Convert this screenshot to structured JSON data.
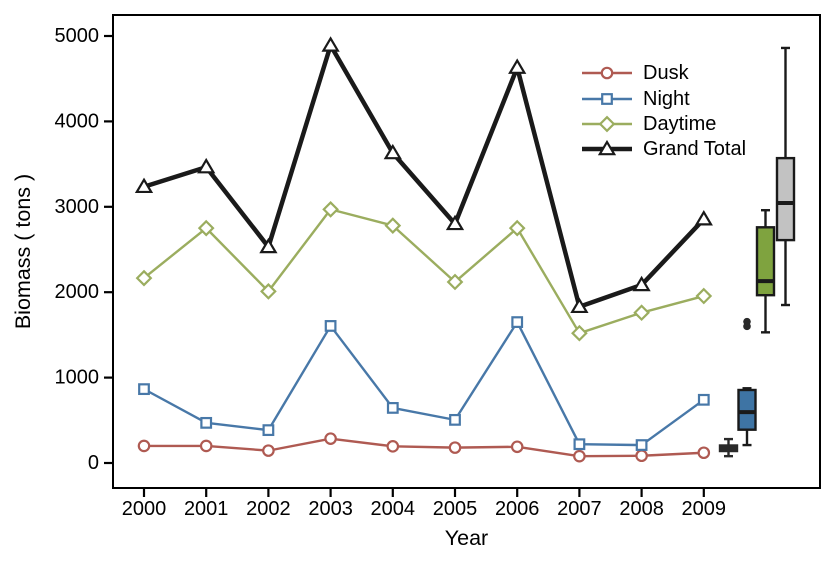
{
  "figure": {
    "background": "#ffffff",
    "frame_color": "#000000"
  },
  "chart_data": {
    "type": "line",
    "title": "",
    "xlabel": "Year",
    "ylabel": "Biomass ( tons )",
    "grid": false,
    "legend_position": "top-right",
    "x": [
      2000,
      2001,
      2002,
      2003,
      2004,
      2005,
      2006,
      2007,
      2008,
      2009
    ],
    "yticks": [
      0,
      1000,
      2000,
      3000,
      4000,
      5000
    ],
    "ylim": [
      -295,
      5245
    ],
    "series": [
      {
        "name": "Dusk",
        "marker": "circle",
        "color": "#AF5A52",
        "line_width": 2.4,
        "values": [
          200,
          200,
          145,
          285,
          195,
          180,
          190,
          80,
          85,
          120
        ]
      },
      {
        "name": "Night",
        "marker": "square",
        "color": "#4878A8",
        "line_width": 2.4,
        "values": [
          865,
          470,
          385,
          1605,
          645,
          505,
          1650,
          220,
          210,
          740
        ]
      },
      {
        "name": "Daytime",
        "marker": "diamond",
        "color": "#9BAD5F",
        "line_width": 2.4,
        "values": [
          2165,
          2750,
          2010,
          2970,
          2780,
          2120,
          2750,
          1520,
          1760,
          1955
        ]
      },
      {
        "name": "Grand Total",
        "marker": "triangle",
        "color": "#1A1A1A",
        "line_width": 4.5,
        "values": [
          3235,
          3465,
          2530,
          4890,
          3630,
          2800,
          4630,
          1830,
          2085,
          2855
        ]
      }
    ],
    "boxplots": [
      {
        "name": "Dusk",
        "fill": "#2A2A2A",
        "border": "#2A2A2A",
        "low": 80,
        "q1": 140,
        "median": 185,
        "q3": 205,
        "high": 280,
        "outliers": []
      },
      {
        "name": "Night",
        "fill": "#3E74A4",
        "border": "#1A1A1A",
        "low": 210,
        "q1": 390,
        "median": 595,
        "q3": 855,
        "high": 875,
        "outliers": [
          1600,
          1655
        ]
      },
      {
        "name": "Daytime",
        "fill": "#7FA33F",
        "border": "#1A1A1A",
        "low": 1530,
        "q1": 1965,
        "median": 2130,
        "q3": 2760,
        "high": 2960,
        "outliers": []
      },
      {
        "name": "Grand Total",
        "fill": "#C2C2C2",
        "border": "#1A1A1A",
        "low": 1850,
        "q1": 2610,
        "median": 3045,
        "q3": 3570,
        "high": 4860,
        "outliers": []
      }
    ],
    "legend": {
      "items": [
        "Dusk",
        "Night",
        "Daytime",
        "Grand Total"
      ]
    }
  }
}
